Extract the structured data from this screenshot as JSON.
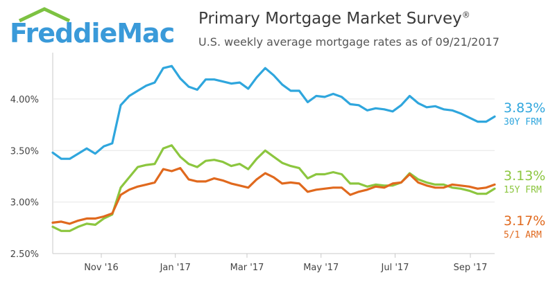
{
  "brand": {
    "name": "FreddieMac",
    "color": "#3a9ad9",
    "roof_color": "#7dc242"
  },
  "header": {
    "title": "Primary Mortgage Market Survey",
    "title_mark": "®",
    "subtitle": "U.S. weekly average mortgage rates as of 09/21/2017"
  },
  "chart_data": {
    "type": "line",
    "title": "Primary Mortgage Market Survey",
    "subtitle": "U.S. weekly average mortgage rates as of 09/21/2017",
    "x_unit": "weekly",
    "x_start": "2016-09-22",
    "x_end": "2017-09-21",
    "xticks": [
      {
        "label": "Nov '16",
        "date": "2016-11-01"
      },
      {
        "label": "Jan '17",
        "date": "2017-01-01"
      },
      {
        "label": "Mar '17",
        "date": "2017-03-01"
      },
      {
        "label": "May '17",
        "date": "2017-05-01"
      },
      {
        "label": "Jul '17",
        "date": "2017-07-01"
      },
      {
        "label": "Sep '17",
        "date": "2017-09-01"
      }
    ],
    "yticks": [
      {
        "label": "2.50%",
        "value": 2.5
      },
      {
        "label": "3.00%",
        "value": 3.0
      },
      {
        "label": "3.50%",
        "value": 3.5
      },
      {
        "label": "4.00%",
        "value": 4.0
      }
    ],
    "ylim": [
      2.5,
      4.45
    ],
    "grid": "horizontal",
    "series": [
      {
        "name": "30Y FRM",
        "color": "#2fa6dd",
        "last_label": "3.83%",
        "values": [
          3.48,
          3.42,
          3.42,
          3.47,
          3.52,
          3.47,
          3.54,
          3.57,
          3.94,
          4.03,
          4.08,
          4.13,
          4.16,
          4.3,
          4.32,
          4.2,
          4.12,
          4.09,
          4.19,
          4.19,
          4.17,
          4.15,
          4.16,
          4.1,
          4.21,
          4.3,
          4.23,
          4.14,
          4.08,
          4.08,
          3.97,
          4.03,
          4.02,
          4.05,
          4.02,
          3.95,
          3.94,
          3.89,
          3.91,
          3.9,
          3.88,
          3.94,
          4.03,
          3.96,
          3.92,
          3.93,
          3.9,
          3.89,
          3.86,
          3.82,
          3.78,
          3.78,
          3.83
        ]
      },
      {
        "name": "15Y FRM",
        "color": "#8cc63f",
        "last_label": "3.13%",
        "values": [
          2.76,
          2.72,
          2.72,
          2.76,
          2.79,
          2.78,
          2.84,
          2.88,
          3.14,
          3.24,
          3.34,
          3.36,
          3.37,
          3.52,
          3.55,
          3.44,
          3.37,
          3.34,
          3.4,
          3.41,
          3.39,
          3.35,
          3.37,
          3.32,
          3.42,
          3.5,
          3.44,
          3.38,
          3.35,
          3.33,
          3.23,
          3.27,
          3.27,
          3.29,
          3.27,
          3.18,
          3.18,
          3.15,
          3.17,
          3.16,
          3.16,
          3.19,
          3.28,
          3.22,
          3.19,
          3.17,
          3.17,
          3.14,
          3.13,
          3.11,
          3.08,
          3.08,
          3.13
        ]
      },
      {
        "name": "5/1 ARM",
        "color": "#e0691e",
        "last_label": "3.17%",
        "values": [
          2.8,
          2.81,
          2.79,
          2.82,
          2.84,
          2.84,
          2.86,
          2.89,
          3.07,
          3.12,
          3.15,
          3.17,
          3.19,
          3.32,
          3.3,
          3.33,
          3.22,
          3.2,
          3.2,
          3.23,
          3.21,
          3.18,
          3.16,
          3.14,
          3.22,
          3.28,
          3.24,
          3.18,
          3.19,
          3.18,
          3.1,
          3.12,
          3.13,
          3.14,
          3.14,
          3.07,
          3.1,
          3.12,
          3.15,
          3.14,
          3.18,
          3.19,
          3.27,
          3.19,
          3.16,
          3.14,
          3.14,
          3.17,
          3.16,
          3.15,
          3.13,
          3.14,
          3.17
        ]
      }
    ]
  }
}
